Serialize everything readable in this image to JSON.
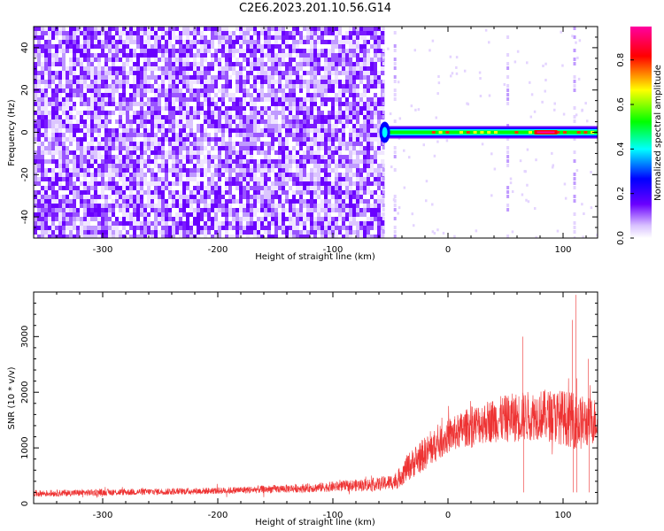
{
  "title": "C2E6.2023.201.10.56.G14",
  "chart_data": [
    {
      "type": "heatmap",
      "title": "",
      "xlabel": "Height of straight line (km)",
      "ylabel": "Frequency (Hz)",
      "xlim": [
        -360,
        130
      ],
      "ylim": [
        -50,
        50
      ],
      "xticks": [
        "-300",
        "-200",
        "-100",
        "0",
        "100"
      ],
      "xtick_values": [
        -300,
        -200,
        -100,
        0,
        100
      ],
      "yticks": [
        "-40",
        "-20",
        "0",
        "20",
        "40"
      ],
      "ytick_values": [
        -40,
        -20,
        0,
        20,
        40
      ],
      "noise_region_x": [
        -360,
        -58
      ],
      "signal": {
        "frequency_hz": 0,
        "x_range": [
          -58,
          130
        ],
        "peak_x": [
          75,
          95
        ],
        "vertical_streaks_x": [
          -56,
          -46,
          52,
          110
        ]
      },
      "colorbar": {
        "label": "Normalized spectral amplitude",
        "range": [
          0.0,
          0.95
        ],
        "ticks": [
          "0.0",
          "0.2",
          "0.4",
          "0.6",
          "0.8"
        ],
        "tick_values": [
          0.0,
          0.2,
          0.4,
          0.6,
          0.8
        ],
        "colors": [
          "#ffffff",
          "#b88cff",
          "#6a00ff",
          "#0000ff",
          "#00ffff",
          "#00ff00",
          "#ffff00",
          "#ff0000",
          "#ff00a0"
        ]
      }
    },
    {
      "type": "line",
      "title": "",
      "xlabel": "Height of straight line (km)",
      "ylabel": "SNR (10 * v/v)",
      "xlim": [
        -360,
        130
      ],
      "ylim": [
        0,
        3800
      ],
      "xticks": [
        "-300",
        "-200",
        "-100",
        "0",
        "100"
      ],
      "xtick_values": [
        -300,
        -200,
        -100,
        0,
        100
      ],
      "yticks": [
        "0",
        "1000",
        "2000",
        "3000"
      ],
      "ytick_values": [
        0,
        1000,
        2000,
        3000
      ],
      "line_color": "#ee3333",
      "series_profile": {
        "x": [
          -360,
          -300,
          -200,
          -120,
          -60,
          -45,
          -35,
          -20,
          0,
          20,
          40,
          60,
          80,
          100,
          115,
          130
        ],
        "y": [
          180,
          200,
          230,
          280,
          350,
          400,
          650,
          900,
          1200,
          1400,
          1500,
          1550,
          1600,
          1550,
          1450,
          1500
        ],
        "spread": [
          60,
          60,
          60,
          80,
          120,
          150,
          250,
          300,
          300,
          350,
          400,
          450,
          450,
          500,
          500,
          400
        ]
      },
      "spikes": [
        {
          "x": 65,
          "y": 3000
        },
        {
          "x": 108,
          "y": 3300
        },
        {
          "x": 111,
          "y": 3750
        },
        {
          "x": 122,
          "y": 2600
        }
      ]
    }
  ]
}
